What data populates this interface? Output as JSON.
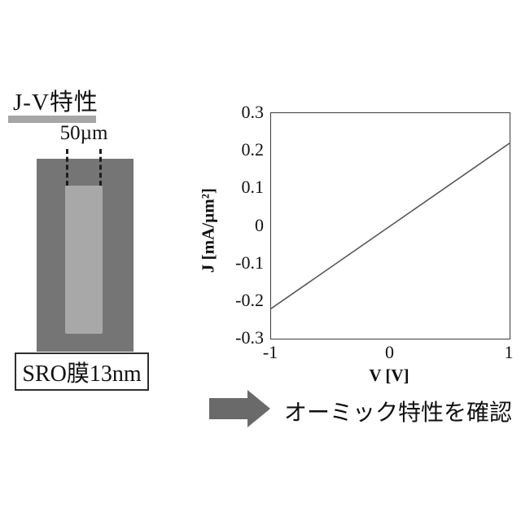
{
  "figure": {
    "background": "#ffffff",
    "title": "J-V特性",
    "underline_color": "#a6a6a6",
    "scale_label": "50µm",
    "sample_outer_color": "#757575",
    "sample_inner_color": "#a8a8a8",
    "film_label": "SRO膜13nm",
    "arrow_color": "#6a6a6a",
    "conclusion_text": "オーミック特性を確認"
  },
  "chart_data": {
    "type": "line",
    "title": "",
    "xlabel": "V [V]",
    "ylabel": "J [mA/µm²]",
    "xlim": [
      -1,
      1
    ],
    "ylim": [
      -0.3,
      0.3
    ],
    "x_tick_labels": [
      "-1",
      "0",
      "1"
    ],
    "y_tick_labels": [
      "0.3",
      "0.2",
      "0.1",
      "0",
      "-0.1",
      "-0.2",
      "-0.3"
    ],
    "grid": false,
    "legend": false,
    "series": [
      {
        "name": "J-V measurement",
        "color": "#565656",
        "stroke_width": 1.6,
        "x": [
          -1,
          1
        ],
        "y": [
          -0.22,
          0.22
        ]
      }
    ]
  }
}
